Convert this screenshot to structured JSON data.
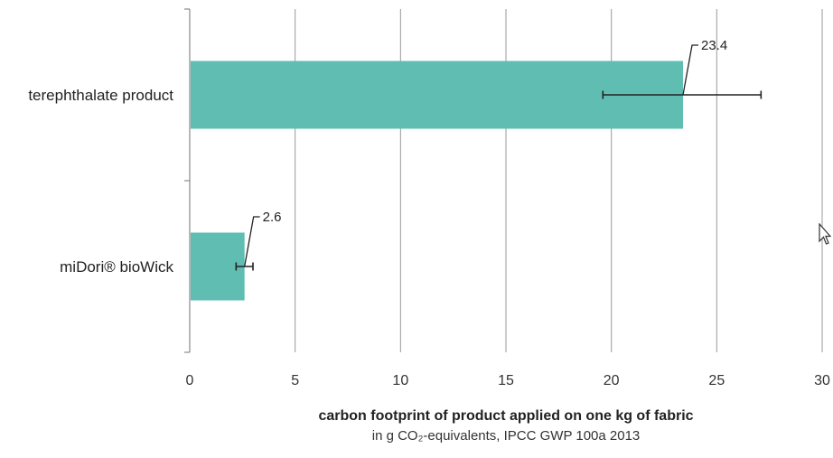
{
  "chart_data": {
    "type": "bar",
    "orientation": "horizontal",
    "categories": [
      "terephthalate product",
      "miDori® bioWick"
    ],
    "values": [
      23.4,
      2.6
    ],
    "error_low": [
      19.6,
      2.2
    ],
    "error_high": [
      27.1,
      3.0
    ],
    "data_labels": [
      "23.4",
      "2.6"
    ],
    "xlabel": "carbon footprint of product applied on one kg of fabric",
    "xlabel_sub": "in g CO₂-equivalents, IPCC GWP 100a 2013",
    "xlim": [
      0,
      30
    ],
    "xticks": [
      0,
      5,
      10,
      15,
      20,
      25,
      30
    ],
    "grid": "vertical",
    "bar_color": "#5fbdb1"
  }
}
